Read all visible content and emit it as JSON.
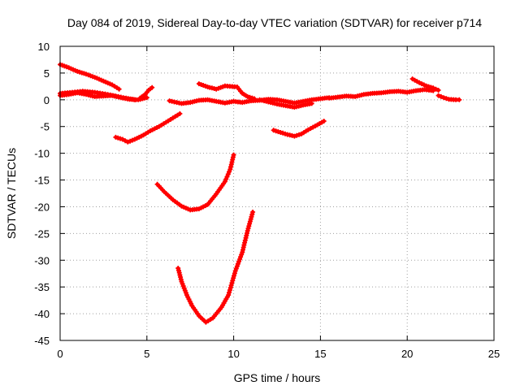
{
  "chart_data": {
    "type": "scatter",
    "title": "Day 084 of 2019, Sidereal Day-to-day VTEC variation (SDTVAR) for receiver p714",
    "xlabel": "GPS time / hours",
    "ylabel": "SDTVAR / TECUs",
    "xlim": [
      0,
      25
    ],
    "ylim": [
      -45,
      10
    ],
    "xticks": [
      0,
      5,
      10,
      15,
      20,
      25
    ],
    "yticks": [
      10,
      5,
      0,
      -5,
      -10,
      -15,
      -20,
      -25,
      -30,
      -35,
      -40,
      -45
    ],
    "grid": true,
    "grid_style": "dotted",
    "marker_color": "#ff0000",
    "series": [
      {
        "points": [
          [
            0,
            6.6
          ],
          [
            0.5,
            6.0
          ],
          [
            1,
            5.3
          ],
          [
            1.5,
            4.8
          ],
          [
            2,
            4.2
          ],
          [
            2.5,
            3.5
          ],
          [
            3,
            2.8
          ],
          [
            3.4,
            2.0
          ]
        ]
      },
      {
        "points": [
          [
            0,
            0.8
          ],
          [
            0.5,
            1.0
          ],
          [
            1,
            1.3
          ],
          [
            1.5,
            1.0
          ],
          [
            2,
            0.6
          ],
          [
            2.5,
            0.7
          ],
          [
            3,
            0.8
          ],
          [
            3.5,
            0.4
          ],
          [
            4,
            0.1
          ],
          [
            4.5,
            0.0
          ],
          [
            5,
            0.4
          ]
        ]
      },
      {
        "points": [
          [
            0,
            1.2
          ],
          [
            0.7,
            1.4
          ],
          [
            1.3,
            1.6
          ],
          [
            2,
            1.4
          ],
          [
            2.6,
            1.1
          ],
          [
            3.2,
            0.7
          ],
          [
            3.8,
            0.3
          ],
          [
            4.3,
            0.0
          ]
        ]
      },
      {
        "points": [
          [
            4.6,
            0.3
          ],
          [
            4.9,
            1.0
          ],
          [
            5.1,
            1.8
          ],
          [
            5.3,
            2.3
          ]
        ]
      },
      {
        "points": [
          [
            3.2,
            -7.0
          ],
          [
            3.6,
            -7.4
          ],
          [
            3.9,
            -7.9
          ],
          [
            4.3,
            -7.4
          ],
          [
            4.8,
            -6.6
          ],
          [
            5.2,
            -5.8
          ],
          [
            5.7,
            -5.0
          ],
          [
            6.1,
            -4.2
          ],
          [
            6.5,
            -3.4
          ],
          [
            6.9,
            -2.6
          ]
        ]
      },
      {
        "points": [
          [
            5.6,
            -15.8
          ],
          [
            6,
            -17.2
          ],
          [
            6.5,
            -18.7
          ],
          [
            7,
            -19.9
          ],
          [
            7.5,
            -20.6
          ],
          [
            8,
            -20.4
          ],
          [
            8.5,
            -19.6
          ],
          [
            9,
            -17.6
          ],
          [
            9.5,
            -15.3
          ],
          [
            9.8,
            -13.0
          ],
          [
            10,
            -10.3
          ]
        ]
      },
      {
        "points": [
          [
            6.8,
            -31.5
          ],
          [
            7,
            -34.0
          ],
          [
            7.3,
            -36.5
          ],
          [
            7.6,
            -38.5
          ],
          [
            8,
            -40.4
          ],
          [
            8.4,
            -41.6
          ],
          [
            8.8,
            -40.8
          ],
          [
            9.3,
            -38.8
          ],
          [
            9.7,
            -36.5
          ],
          [
            10.1,
            -32.0
          ],
          [
            10.5,
            -28.5
          ],
          [
            10.8,
            -24.5
          ],
          [
            11.1,
            -21.0
          ]
        ]
      },
      {
        "points": [
          [
            6.3,
            -0.2
          ],
          [
            7,
            -0.7
          ],
          [
            7.5,
            -0.5
          ],
          [
            8,
            -0.1
          ],
          [
            8.5,
            0.0
          ],
          [
            9,
            -0.3
          ],
          [
            9.5,
            -0.6
          ],
          [
            10,
            -0.3
          ],
          [
            10.5,
            -0.5
          ],
          [
            11,
            -0.2
          ],
          [
            11.5,
            -0.1
          ],
          [
            12,
            0.1
          ],
          [
            12.5,
            0.0
          ],
          [
            13,
            -0.3
          ],
          [
            13.5,
            -0.6
          ],
          [
            14,
            -0.3
          ],
          [
            14.5,
            0.0
          ],
          [
            15,
            0.2
          ],
          [
            15.5,
            0.4
          ]
        ]
      },
      {
        "points": [
          [
            8,
            3.0
          ],
          [
            8.5,
            2.4
          ],
          [
            9,
            2.0
          ],
          [
            9.5,
            2.6
          ],
          [
            10.2,
            2.4
          ],
          [
            10.5,
            1.2
          ],
          [
            10.8,
            0.6
          ],
          [
            11.2,
            0.2
          ]
        ]
      },
      {
        "points": [
          [
            11.5,
            0.0
          ],
          [
            12,
            -0.4
          ],
          [
            12.5,
            -0.8
          ],
          [
            13,
            -1.1
          ],
          [
            13.5,
            -1.4
          ],
          [
            14,
            -1.0
          ],
          [
            14.5,
            -0.7
          ]
        ]
      },
      {
        "points": [
          [
            12.3,
            -5.7
          ],
          [
            12.7,
            -6.1
          ],
          [
            13.1,
            -6.5
          ],
          [
            13.5,
            -6.8
          ],
          [
            13.9,
            -6.4
          ],
          [
            14.3,
            -5.6
          ],
          [
            14.7,
            -4.9
          ],
          [
            15.2,
            -4.0
          ]
        ]
      },
      {
        "points": [
          [
            15.5,
            0.3
          ],
          [
            16,
            0.5
          ],
          [
            16.5,
            0.7
          ],
          [
            17,
            0.6
          ],
          [
            17.5,
            1.0
          ],
          [
            18,
            1.2
          ],
          [
            18.5,
            1.3
          ],
          [
            19,
            1.5
          ],
          [
            19.5,
            1.6
          ],
          [
            20,
            1.4
          ],
          [
            20.5,
            1.7
          ],
          [
            21,
            1.9
          ],
          [
            21.5,
            1.7
          ]
        ]
      },
      {
        "points": [
          [
            20.3,
            3.9
          ],
          [
            20.7,
            3.2
          ],
          [
            21.1,
            2.6
          ],
          [
            21.5,
            2.2
          ],
          [
            21.8,
            1.8
          ]
        ]
      },
      {
        "points": [
          [
            21.8,
            0.8
          ],
          [
            22.1,
            0.4
          ],
          [
            22.4,
            0.1
          ],
          [
            22.8,
            0.0
          ],
          [
            23.0,
            0.0
          ]
        ]
      }
    ]
  }
}
